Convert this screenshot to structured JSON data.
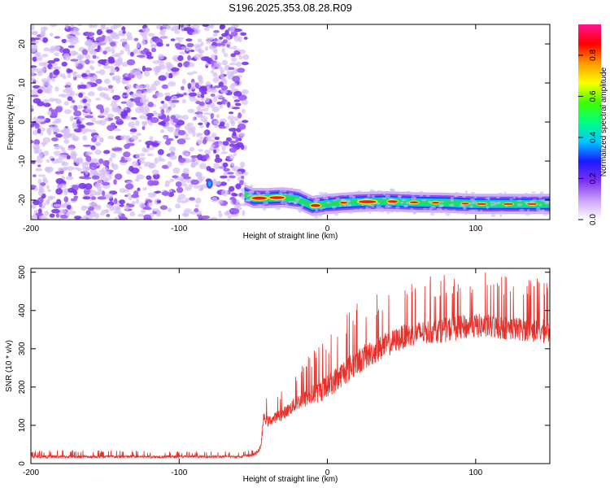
{
  "title": "S196.2025.353.08.28.R09",
  "colors": {
    "spectrogram_low": "#d9c9f7",
    "spectrogram_mid": "#7b2ff0",
    "snr_line": "#e8302a",
    "axis": "#000000",
    "background": "#ffffff"
  },
  "colorbar": {
    "label": "Normalized spectral amplitude",
    "ticks": [
      "0.0",
      "0.2",
      "0.4",
      "0.6",
      "0.8"
    ],
    "range": [
      0,
      0.95
    ],
    "colormap": [
      "#ffffff",
      "#c9a0f8",
      "#7b2ff0",
      "#1a1aff",
      "#00c8ff",
      "#00ff80",
      "#40ff00",
      "#ffff00",
      "#ff9900",
      "#ff0000",
      "#ff1493"
    ]
  },
  "chart_data": [
    {
      "type": "heatmap",
      "title": "S196.2025.353.08.28.R09",
      "xlabel": "Height of straight line (km)",
      "ylabel": "Frequency (Hz)",
      "xlim": [
        -200,
        150
      ],
      "ylim": [
        -25,
        25
      ],
      "xticks": [
        "-200",
        "-100",
        "0",
        "100"
      ],
      "yticks": [
        "-20",
        "-10",
        "0",
        "10",
        "20"
      ],
      "noise_region_x": [
        -200,
        -55
      ],
      "ridge": {
        "x": [
          -56,
          -50,
          -40,
          -30,
          -20,
          -10,
          0,
          10,
          20,
          40,
          60,
          80,
          100,
          120,
          150
        ],
        "freq_hz": [
          -18.5,
          -19.5,
          -19.5,
          -19.3,
          -19.8,
          -21.5,
          -21.0,
          -20.7,
          -20.5,
          -20.3,
          -20.6,
          -20.7,
          -21.0,
          -21.0,
          -21.0
        ]
      }
    },
    {
      "type": "line",
      "xlabel": "Height of straight line (km)",
      "ylabel": "SNR (10 * v/v)",
      "xlim": [
        -200,
        150
      ],
      "ylim": [
        0,
        510
      ],
      "xticks": [
        "-200",
        "-100",
        "0",
        "100"
      ],
      "yticks": [
        "0",
        "100",
        "200",
        "300",
        "400",
        "500"
      ],
      "series": [
        {
          "x": [
            -200,
            -150,
            -100,
            -60,
            -50,
            -45,
            -43,
            -40,
            -30,
            -20,
            -10,
            0,
            10,
            20,
            30,
            40,
            50,
            60,
            70,
            80,
            90,
            100,
            110,
            120,
            130,
            140,
            150
          ],
          "y": [
            18,
            18,
            18,
            18,
            22,
            40,
            120,
            110,
            130,
            160,
            180,
            200,
            235,
            265,
            290,
            310,
            330,
            340,
            345,
            350,
            355,
            360,
            358,
            355,
            352,
            348,
            345
          ],
          "peak_envelope": [
            35,
            35,
            33,
            32,
            40,
            70,
            175,
            170,
            200,
            250,
            300,
            340,
            390,
            420,
            440,
            455,
            470,
            480,
            490,
            495,
            500,
            505,
            500,
            495,
            490,
            485,
            480
          ]
        }
      ]
    }
  ]
}
